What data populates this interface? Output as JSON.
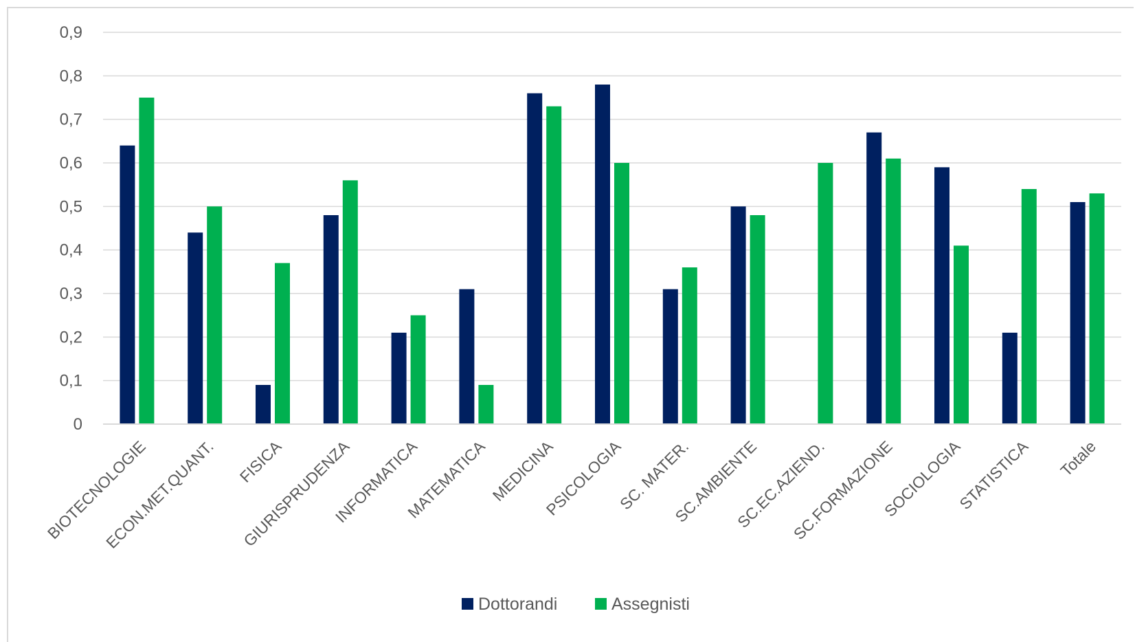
{
  "chart_data": {
    "type": "bar",
    "categories": [
      "BIOTECNOLOGIE",
      "ECON.MET.QUANT.",
      "FISICA",
      "GIURISPRUDENZA",
      "INFORMATICA",
      "MATEMATICA",
      "MEDICINA",
      "PSICOLOGIA",
      "SC. MATER.",
      "SC.AMBIENTE",
      "SC.EC.AZIEND.",
      "SC.FORMAZIONE",
      "SOCIOLOGIA",
      "STATISTICA",
      "Totale"
    ],
    "series": [
      {
        "name": "Dottorandi",
        "color": "#002060",
        "values": [
          0.64,
          0.44,
          0.09,
          0.48,
          0.21,
          0.31,
          0.76,
          0.78,
          0.31,
          0.5,
          0,
          0.67,
          0.59,
          0.21,
          0.51
        ]
      },
      {
        "name": "Assegnisti",
        "color": "#00B050",
        "values": [
          0.75,
          0.5,
          0.37,
          0.56,
          0.25,
          0.09,
          0.73,
          0.6,
          0.36,
          0.48,
          0.6,
          0.61,
          0.41,
          0.54,
          0.53
        ]
      }
    ],
    "ylim": [
      0,
      0.9
    ],
    "yticks": [
      "0",
      "0,1",
      "0,2",
      "0,3",
      "0,4",
      "0,5",
      "0,6",
      "0,7",
      "0,8",
      "0,9"
    ],
    "grid": true,
    "legend_position": "bottom",
    "title": "",
    "xlabel": "",
    "ylabel": ""
  }
}
